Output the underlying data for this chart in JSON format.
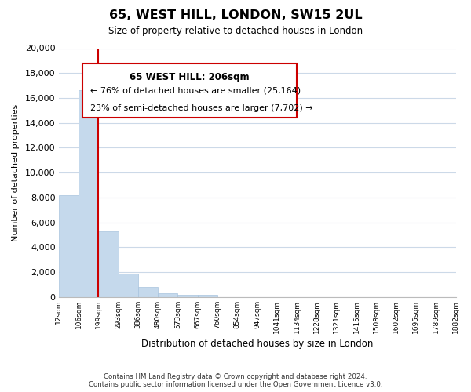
{
  "title": "65, WEST HILL, LONDON, SW15 2UL",
  "subtitle": "Size of property relative to detached houses in London",
  "xlabel": "Distribution of detached houses by size in London",
  "ylabel": "Number of detached properties",
  "bar_values": [
    8200,
    16600,
    5300,
    1850,
    800,
    300,
    200,
    150,
    0,
    0,
    0,
    0,
    0,
    0,
    0,
    0,
    0,
    0,
    0,
    0
  ],
  "bar_labels": [
    "12sqm",
    "106sqm",
    "199sqm",
    "293sqm",
    "386sqm",
    "480sqm",
    "573sqm",
    "667sqm",
    "760sqm",
    "854sqm",
    "947sqm",
    "1041sqm",
    "1134sqm",
    "1228sqm",
    "1321sqm",
    "1415sqm",
    "1508sqm",
    "1602sqm",
    "1695sqm",
    "1789sqm",
    "1882sqm"
  ],
  "bar_color": "#c5d9ec",
  "bar_edge_color": "#a8c4de",
  "property_line_color": "#cc0000",
  "property_line_x": 2.0,
  "ylim": [
    0,
    20000
  ],
  "yticks": [
    0,
    2000,
    4000,
    6000,
    8000,
    10000,
    12000,
    14000,
    16000,
    18000,
    20000
  ],
  "annotation_title": "65 WEST HILL: 206sqm",
  "annotation_line1": "← 76% of detached houses are smaller (25,164)",
  "annotation_line2": "23% of semi-detached houses are larger (7,702) →",
  "footer_line1": "Contains HM Land Registry data © Crown copyright and database right 2024.",
  "footer_line2": "Contains public sector information licensed under the Open Government Licence v3.0.",
  "background_color": "#ffffff",
  "grid_color": "#ccd9e8"
}
